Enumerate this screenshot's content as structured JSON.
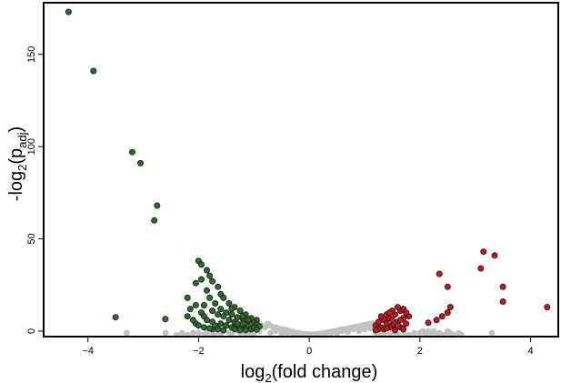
{
  "chart_data": {
    "type": "scatter",
    "title": "",
    "xlabel": {
      "base": "log",
      "sub": "2",
      "rest": "(fold change)"
    },
    "ylabel": {
      "base": "-log",
      "sub": "2",
      "mid": "(p",
      "sub2": "adj",
      "end": ")"
    },
    "xlim": [
      -4.8,
      4.5
    ],
    "ylim": [
      -3,
      178
    ],
    "xticks": [
      -4,
      -2,
      0,
      2,
      4
    ],
    "yticks": [
      0,
      50,
      100,
      150
    ],
    "grid": false,
    "legend": "none",
    "colors": {
      "down": "#2e6b2e",
      "up": "#c8161d",
      "ns": "#c3c1c1",
      "outline": "#1a1a1a"
    },
    "series": [
      {
        "group": "ns",
        "points": [
          [
            -3.3,
            -1
          ],
          [
            -2.6,
            -1
          ],
          [
            -2.4,
            -2
          ],
          [
            -2.3,
            -1
          ],
          [
            -2.2,
            -2
          ],
          [
            -2.1,
            -1
          ],
          [
            -2.0,
            -1
          ],
          [
            -1.9,
            -2
          ],
          [
            -1.85,
            -1
          ],
          [
            -1.75,
            -2
          ],
          [
            -1.7,
            -1
          ],
          [
            -1.6,
            -2
          ],
          [
            -1.55,
            0
          ],
          [
            -1.45,
            -1
          ],
          [
            -1.4,
            -2
          ],
          [
            -1.3,
            0
          ],
          [
            -1.25,
            -1
          ],
          [
            -1.15,
            -2
          ],
          [
            -1.1,
            0
          ],
          [
            -1.05,
            -1
          ],
          [
            -1.0,
            -2
          ],
          [
            -0.95,
            1
          ],
          [
            -0.9,
            0
          ],
          [
            -0.9,
            4
          ],
          [
            -0.85,
            3
          ],
          [
            -0.8,
            2
          ],
          [
            -0.75,
            4
          ],
          [
            -0.7,
            3
          ],
          [
            -0.65,
            2
          ],
          [
            -0.6,
            2
          ],
          [
            -0.55,
            1.5
          ],
          [
            -0.5,
            1
          ],
          [
            -0.45,
            1
          ],
          [
            -0.4,
            0.5
          ],
          [
            -0.35,
            0
          ],
          [
            -0.3,
            -0.3
          ],
          [
            -0.25,
            -0.8
          ],
          [
            -0.2,
            -1
          ],
          [
            -0.15,
            -1.3
          ],
          [
            -0.1,
            -1.5
          ],
          [
            -0.05,
            -1.6
          ],
          [
            0.0,
            -1.7
          ],
          [
            0.05,
            -1.7
          ],
          [
            0.1,
            -1.6
          ],
          [
            0.15,
            -1.5
          ],
          [
            0.2,
            -1.3
          ],
          [
            0.25,
            -1.1
          ],
          [
            0.3,
            -0.9
          ],
          [
            0.35,
            -0.6
          ],
          [
            0.4,
            -0.3
          ],
          [
            0.45,
            0
          ],
          [
            0.5,
            0.3
          ],
          [
            0.55,
            0.6
          ],
          [
            0.6,
            0.9
          ],
          [
            0.65,
            1.2
          ],
          [
            0.7,
            1.5
          ],
          [
            0.75,
            1.8
          ],
          [
            0.8,
            2.1
          ],
          [
            0.85,
            2.4
          ],
          [
            0.9,
            2.7
          ],
          [
            0.95,
            3
          ],
          [
            1.0,
            3.3
          ],
          [
            1.05,
            3.6
          ],
          [
            1.1,
            3.9
          ],
          [
            1.15,
            4.2
          ],
          [
            -0.6,
            0
          ],
          [
            -0.4,
            -1
          ],
          [
            -0.2,
            -2
          ],
          [
            0.2,
            -2
          ],
          [
            0.4,
            -1
          ],
          [
            0.6,
            0
          ],
          [
            0.8,
            1
          ],
          [
            1.0,
            1
          ],
          [
            -0.7,
            -1
          ],
          [
            -0.5,
            -1.5
          ],
          [
            -0.3,
            -2
          ],
          [
            0.0,
            -2.2
          ],
          [
            0.3,
            -2
          ],
          [
            0.5,
            -1.5
          ],
          [
            0.7,
            -0.5
          ],
          [
            0.9,
            0
          ],
          [
            1.1,
            1.5
          ],
          [
            1.2,
            -1
          ],
          [
            1.3,
            -2
          ],
          [
            1.35,
            -1
          ],
          [
            1.45,
            -2
          ],
          [
            1.5,
            -1
          ],
          [
            1.6,
            -2
          ],
          [
            1.7,
            -1
          ],
          [
            1.8,
            -2
          ],
          [
            1.9,
            -1
          ],
          [
            2.0,
            -1
          ],
          [
            2.1,
            -2
          ],
          [
            2.2,
            -1
          ],
          [
            2.3,
            -2
          ],
          [
            2.35,
            -1
          ],
          [
            2.45,
            -2
          ],
          [
            2.55,
            -1
          ],
          [
            2.6,
            -2
          ],
          [
            2.7,
            -1
          ],
          [
            2.75,
            -2
          ],
          [
            3.3,
            -1
          ],
          [
            2.05,
            0
          ],
          [
            2.15,
            0
          ],
          [
            2.25,
            0
          ],
          [
            2.5,
            0
          ]
        ]
      },
      {
        "group": "down",
        "points": [
          [
            -4.35,
            173
          ],
          [
            -3.9,
            141
          ],
          [
            -3.2,
            97
          ],
          [
            -3.05,
            91
          ],
          [
            -2.75,
            68
          ],
          [
            -2.8,
            60
          ],
          [
            -3.5,
            7.5
          ],
          [
            -2.6,
            6.5
          ],
          [
            -2.05,
            4
          ],
          [
            -1.75,
            1
          ],
          [
            -2.0,
            38
          ],
          [
            -1.95,
            36
          ],
          [
            -1.85,
            33
          ],
          [
            -1.8,
            30
          ],
          [
            -1.75,
            27
          ],
          [
            -1.65,
            24
          ],
          [
            -1.6,
            20
          ],
          [
            -1.55,
            18
          ],
          [
            -1.45,
            15
          ],
          [
            -1.35,
            13
          ],
          [
            -1.25,
            11
          ],
          [
            -1.15,
            9
          ],
          [
            -1.05,
            7
          ],
          [
            -0.95,
            6
          ],
          [
            -1.85,
            22
          ],
          [
            -1.8,
            18
          ],
          [
            -1.7,
            15
          ],
          [
            -1.6,
            12
          ],
          [
            -1.5,
            10
          ],
          [
            -1.4,
            9
          ],
          [
            -1.3,
            7.5
          ],
          [
            -1.2,
            6.5
          ],
          [
            -1.1,
            5.5
          ],
          [
            -1.0,
            4.5
          ],
          [
            -0.95,
            3.5
          ],
          [
            -0.9,
            2.5
          ],
          [
            -2.2,
            18
          ],
          [
            -2.15,
            12
          ],
          [
            -2.05,
            14
          ],
          [
            -1.95,
            10
          ],
          [
            -1.9,
            8
          ],
          [
            -1.85,
            6
          ],
          [
            -1.75,
            5
          ],
          [
            -1.7,
            3
          ],
          [
            -1.6,
            4
          ],
          [
            -1.5,
            3
          ],
          [
            -1.45,
            6
          ],
          [
            -1.4,
            2
          ],
          [
            -1.3,
            3
          ],
          [
            -1.25,
            2
          ],
          [
            -1.2,
            4
          ],
          [
            -1.15,
            1.5
          ],
          [
            -1.1,
            2.5
          ],
          [
            -1.05,
            1
          ],
          [
            -1.0,
            2
          ],
          [
            -0.95,
            0.8
          ],
          [
            -2.2,
            8
          ],
          [
            -2.1,
            6
          ],
          [
            -2.0,
            3
          ],
          [
            -1.9,
            2
          ],
          [
            -1.8,
            1.5
          ],
          [
            -1.65,
            1
          ],
          [
            -1.55,
            0.5
          ],
          [
            -1.35,
            1
          ],
          [
            -1.25,
            0.5
          ],
          [
            -1.15,
            0.5
          ],
          [
            -1.35,
            5
          ],
          [
            -1.3,
            4
          ],
          [
            -1.55,
            8
          ],
          [
            -1.65,
            9
          ],
          [
            -1.75,
            11
          ],
          [
            -1.9,
            14
          ],
          [
            -2.05,
            26
          ],
          [
            -1.95,
            28
          ],
          [
            -1.4,
            12
          ],
          [
            -1.2,
            8
          ],
          [
            -1.1,
            6
          ]
        ]
      },
      {
        "group": "up",
        "points": [
          [
            4.3,
            13
          ],
          [
            3.5,
            16
          ],
          [
            3.5,
            24
          ],
          [
            3.35,
            41
          ],
          [
            3.15,
            43
          ],
          [
            3.1,
            34
          ],
          [
            2.35,
            31
          ],
          [
            2.5,
            24
          ],
          [
            2.55,
            13
          ],
          [
            2.5,
            10
          ],
          [
            2.4,
            8
          ],
          [
            2.3,
            6
          ],
          [
            2.15,
            4.5
          ],
          [
            1.2,
            3
          ],
          [
            1.25,
            5
          ],
          [
            1.3,
            2
          ],
          [
            1.35,
            6
          ],
          [
            1.4,
            4
          ],
          [
            1.45,
            7
          ],
          [
            1.5,
            3
          ],
          [
            1.55,
            9
          ],
          [
            1.6,
            5
          ],
          [
            1.65,
            11
          ],
          [
            1.7,
            7
          ],
          [
            1.75,
            4
          ],
          [
            1.35,
            1
          ],
          [
            1.45,
            2
          ],
          [
            1.55,
            1
          ],
          [
            1.65,
            2
          ],
          [
            1.5,
            11
          ],
          [
            1.6,
            13
          ],
          [
            1.7,
            12
          ],
          [
            1.4,
            9
          ],
          [
            1.3,
            8
          ],
          [
            1.25,
            1
          ],
          [
            1.8,
            8
          ],
          [
            1.75,
            10
          ],
          [
            1.6,
            3
          ],
          [
            1.5,
            6
          ],
          [
            1.4,
            1.5
          ],
          [
            1.2,
            0.5
          ],
          [
            1.55,
            0.5
          ],
          [
            1.7,
            1
          ],
          [
            1.65,
            6
          ],
          [
            1.45,
            10
          ]
        ]
      }
    ]
  }
}
